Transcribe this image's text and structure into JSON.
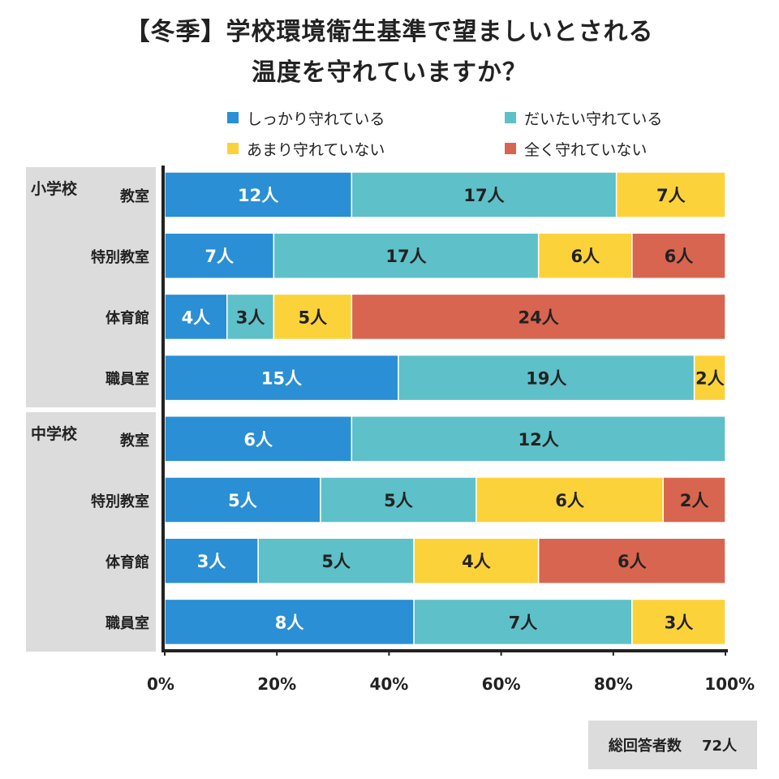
{
  "title_line1": "【冬季】学校環境衛生基準で望ましいとされる",
  "title_line2": "温度を守れていますか？",
  "legend": [
    {
      "label": "しっかり守れている",
      "color": "#2a8fd4"
    },
    {
      "label": "だいたい守れている",
      "color": "#5ec0c8"
    },
    {
      "label": "あまり守れていない",
      "color": "#fcd23b"
    },
    {
      "label": "全く守れていない",
      "color": "#d8654f"
    }
  ],
  "groups": [
    {
      "label": "小学校"
    },
    {
      "label": "中学校"
    }
  ],
  "total": {
    "label": "総回答者数",
    "value": "72人"
  },
  "chart_data": {
    "type": "bar",
    "orientation": "horizontal-stacked-100",
    "unit": "人",
    "xlim": [
      0,
      100
    ],
    "x_ticks": [
      "0%",
      "20%",
      "40%",
      "60%",
      "80%",
      "100%"
    ],
    "series": [
      {
        "name": "しっかり守れている",
        "color": "#2a8fd4",
        "label_color": "#ffffff"
      },
      {
        "name": "だいたい守れている",
        "color": "#5ec0c8",
        "label_color": "#222222"
      },
      {
        "name": "あまり守れていない",
        "color": "#fcd23b",
        "label_color": "#222222"
      },
      {
        "name": "全く守れていない",
        "color": "#d8654f",
        "label_color": "#222222"
      }
    ],
    "rows": [
      {
        "group": "小学校",
        "category": "教室",
        "values": [
          12,
          17,
          7,
          0
        ]
      },
      {
        "group": "小学校",
        "category": "特別教室",
        "values": [
          7,
          17,
          6,
          6
        ]
      },
      {
        "group": "小学校",
        "category": "体育館",
        "values": [
          4,
          3,
          5,
          24
        ]
      },
      {
        "group": "小学校",
        "category": "職員室",
        "values": [
          15,
          19,
          2,
          0
        ]
      },
      {
        "group": "中学校",
        "category": "教室",
        "values": [
          6,
          12,
          0,
          0
        ]
      },
      {
        "group": "中学校",
        "category": "特別教室",
        "values": [
          5,
          5,
          6,
          2
        ]
      },
      {
        "group": "中学校",
        "category": "体育館",
        "values": [
          3,
          5,
          4,
          6
        ]
      },
      {
        "group": "中学校",
        "category": "職員室",
        "values": [
          8,
          7,
          3,
          0
        ]
      }
    ]
  }
}
